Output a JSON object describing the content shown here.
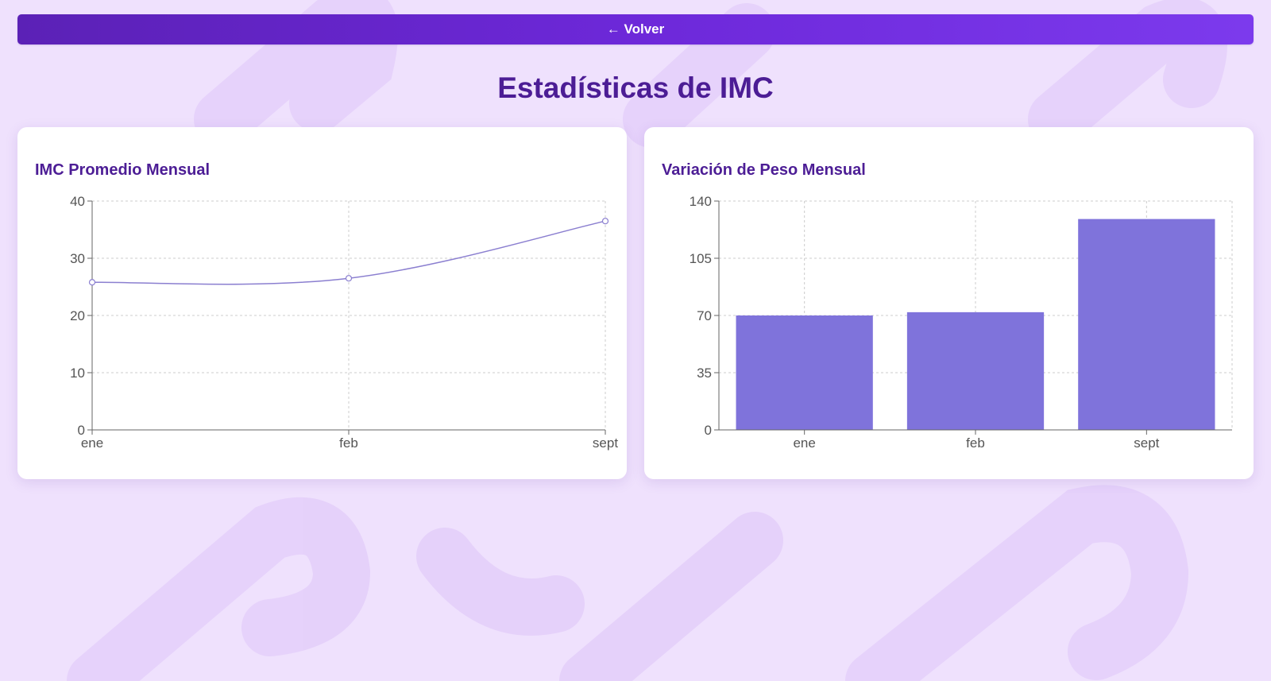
{
  "header": {
    "back_label": "← Volver"
  },
  "page": {
    "title": "Estadísticas de IMC"
  },
  "colors": {
    "accent": "#6d28d9",
    "title": "#4c1d95",
    "line": "#8b7fd0",
    "bar": "#7f73db",
    "background": "#efe1fd"
  },
  "chart_data": [
    {
      "type": "line",
      "title": "IMC Promedio Mensual",
      "categories": [
        "ene",
        "feb",
        "sept"
      ],
      "series": [
        {
          "values": [
            25.8,
            26.5,
            36.5
          ]
        }
      ],
      "ylim": [
        0,
        40
      ],
      "yticks": [
        0,
        10,
        20,
        30,
        40
      ],
      "grid": true,
      "curve": "smooth"
    },
    {
      "type": "bar",
      "title": "Variación de Peso Mensual",
      "categories": [
        "ene",
        "feb",
        "sept"
      ],
      "series": [
        {
          "values": [
            70,
            72,
            129
          ]
        }
      ],
      "ylim": [
        0,
        140
      ],
      "yticks": [
        0,
        35,
        70,
        105,
        140
      ],
      "grid": true
    }
  ]
}
